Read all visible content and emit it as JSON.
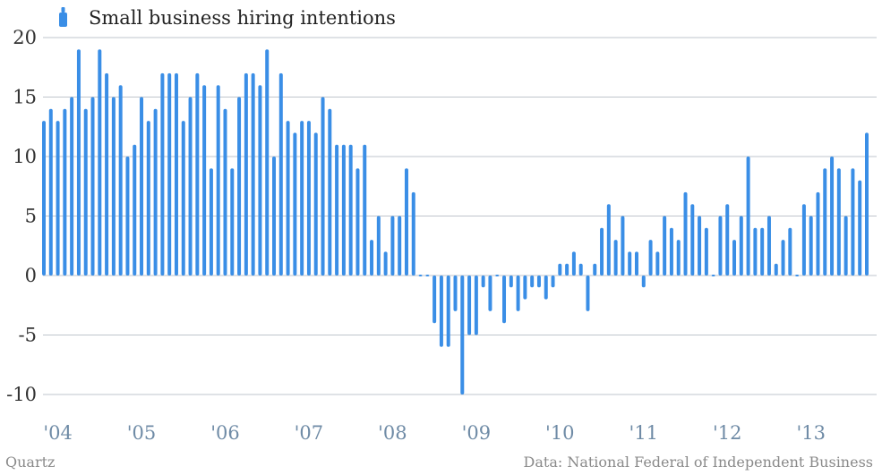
{
  "chart_data": {
    "type": "bar",
    "title": "Small business hiring intentions",
    "xlabel": "",
    "ylabel": "",
    "ylim": [
      -10,
      20
    ],
    "yticks": [
      "20",
      "15",
      "10",
      "5",
      "0",
      "-5",
      "-10"
    ],
    "ytick_values": [
      20,
      15,
      10,
      5,
      0,
      -5,
      -10
    ],
    "xticks": [
      "'04",
      "'05",
      "'06",
      "'07",
      "'08",
      "'09",
      "'10",
      "'11",
      "'12",
      "'13"
    ],
    "grid": true,
    "legend": "top-left",
    "series": [
      {
        "name": "Small business hiring intentions",
        "color": "#3a8ee6",
        "values": [
          13,
          14,
          13,
          14,
          15,
          19,
          14,
          15,
          19,
          17,
          15,
          16,
          10,
          11,
          15,
          13,
          14,
          17,
          17,
          17,
          13,
          15,
          17,
          16,
          9,
          16,
          14,
          9,
          15,
          17,
          17,
          16,
          19,
          10,
          17,
          13,
          12,
          13,
          13,
          12,
          15,
          14,
          11,
          11,
          11,
          9,
          11,
          3,
          5,
          2,
          5,
          5,
          9,
          7,
          0,
          0,
          -4,
          -6,
          -6,
          -3,
          -10,
          -5,
          -5,
          -1,
          -3,
          0,
          -4,
          -1,
          -3,
          -2,
          -1,
          -1,
          -2,
          -1,
          1,
          1,
          2,
          1,
          -3,
          1,
          4,
          6,
          3,
          5,
          2,
          2,
          -1,
          3,
          2,
          5,
          4,
          3,
          7,
          6,
          5,
          4,
          0,
          5,
          6,
          3,
          5,
          10,
          4,
          4,
          5,
          1,
          3,
          4,
          0,
          6,
          5,
          7,
          9,
          10,
          9,
          5,
          9,
          8,
          12
        ]
      }
    ]
  },
  "footer": {
    "brand": "Quartz",
    "source": "Data: National Federal of Independent Business"
  }
}
